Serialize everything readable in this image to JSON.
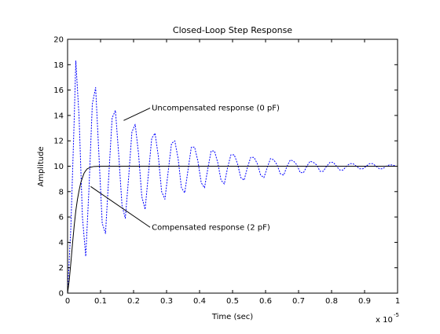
{
  "chart_data": {
    "type": "line",
    "title": "Closed-Loop Step Response",
    "xlabel": "Time (sec)",
    "ylabel": "Amplitude",
    "xlim": [
      0,
      1
    ],
    "ylim": [
      0,
      20
    ],
    "x_scale_label": "x 10",
    "x_scale_exponent": "-5",
    "xticks": [
      "0",
      "0.1",
      "0.2",
      "0.3",
      "0.4",
      "0.5",
      "0.6",
      "0.7",
      "0.8",
      "0.9",
      "1"
    ],
    "yticks": [
      "0",
      "2",
      "4",
      "6",
      "8",
      "10",
      "12",
      "14",
      "16",
      "18",
      "20"
    ],
    "grid": false,
    "series": [
      {
        "name": "Uncompensated response (0 pF)",
        "style": "dotted",
        "color": "#0000ff",
        "x": [
          0,
          0.01,
          0.02,
          0.025,
          0.035,
          0.045,
          0.055,
          0.065,
          0.075,
          0.085,
          0.095,
          0.105,
          0.115,
          0.125,
          0.135,
          0.145,
          0.155,
          0.165,
          0.175,
          0.185,
          0.195,
          0.205,
          0.215,
          0.225,
          0.235,
          0.245,
          0.255,
          0.265,
          0.275,
          0.285,
          0.295,
          0.305,
          0.315,
          0.325,
          0.335,
          0.345,
          0.355,
          0.365,
          0.375,
          0.385,
          0.395,
          0.405,
          0.415,
          0.425,
          0.435,
          0.445,
          0.455,
          0.465,
          0.475,
          0.485,
          0.495,
          0.505,
          0.515,
          0.525,
          0.535,
          0.545,
          0.555,
          0.565,
          0.575,
          0.585,
          0.595,
          0.605,
          0.615,
          0.625,
          0.635,
          0.645,
          0.655,
          0.665,
          0.675,
          0.685,
          0.695,
          0.705,
          0.715,
          0.725,
          0.735,
          0.745,
          0.755,
          0.765,
          0.775,
          0.785,
          0.795,
          0.805,
          0.815,
          0.825,
          0.835,
          0.845,
          0.855,
          0.865,
          0.875,
          0.885,
          0.895,
          0.905,
          0.915,
          0.925,
          0.935,
          0.945,
          0.955,
          0.965,
          0.975,
          0.985,
          0.995,
          1.0
        ],
        "y": [
          0,
          5.2,
          13.6,
          18.3,
          13.8,
          6.0,
          2.9,
          8.3,
          14.9,
          16.2,
          10.9,
          5.5,
          4.7,
          9.3,
          13.8,
          14.4,
          10.9,
          6.9,
          5.9,
          9.1,
          12.7,
          13.3,
          11.0,
          7.6,
          6.6,
          9.4,
          12.2,
          12.6,
          10.8,
          8.0,
          7.4,
          9.6,
          11.8,
          12.0,
          10.6,
          8.3,
          7.9,
          9.7,
          11.5,
          11.5,
          10.4,
          8.7,
          8.3,
          9.8,
          11.2,
          11.2,
          10.3,
          8.9,
          8.6,
          9.9,
          10.9,
          10.9,
          10.2,
          9.1,
          8.9,
          9.9,
          10.7,
          10.7,
          10.2,
          9.3,
          9.1,
          9.9,
          10.6,
          10.5,
          10.1,
          9.4,
          9.3,
          10.0,
          10.5,
          10.4,
          10.1,
          9.5,
          9.5,
          10.0,
          10.4,
          10.3,
          10.1,
          9.6,
          9.6,
          10.0,
          10.3,
          10.3,
          10.0,
          9.7,
          9.7,
          10.0,
          10.2,
          10.2,
          10.0,
          9.8,
          9.8,
          10.0,
          10.2,
          10.2,
          10.0,
          9.8,
          9.8,
          10.0,
          10.1,
          10.1,
          10.0,
          10.0
        ]
      },
      {
        "name": "Compensated response (2 pF)",
        "style": "solid",
        "color": "#000000",
        "x": [
          0,
          0.005,
          0.01,
          0.015,
          0.02,
          0.025,
          0.03,
          0.035,
          0.04,
          0.045,
          0.05,
          0.055,
          0.06,
          0.07,
          0.08,
          0.1,
          0.2,
          0.4,
          0.6,
          0.8,
          1.0
        ],
        "y": [
          0,
          1.0,
          2.4,
          3.9,
          5.3,
          6.5,
          7.4,
          8.1,
          8.7,
          9.1,
          9.45,
          9.65,
          9.8,
          9.92,
          9.98,
          10.0,
          10.0,
          10.0,
          10.0,
          10.0,
          10.0
        ]
      }
    ],
    "annotations": [
      {
        "text": "Uncompensated response (0 pF)",
        "text_at": [
          0.255,
          14.4
        ],
        "points_to": [
          0.17,
          13.6
        ]
      },
      {
        "text": "Compensated response (2 pF)",
        "text_at": [
          0.255,
          5.0
        ],
        "points_to": [
          0.07,
          8.4
        ]
      }
    ]
  }
}
